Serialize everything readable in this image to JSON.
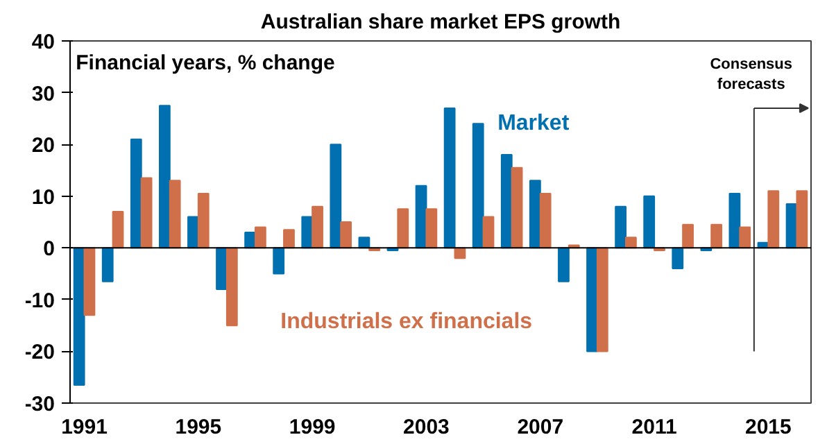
{
  "chart_data": {
    "type": "bar",
    "title": "Australian share market EPS growth",
    "categories": [
      "1991",
      null,
      null,
      null,
      "1995",
      null,
      null,
      null,
      "1999",
      null,
      null,
      null,
      "2003",
      null,
      null,
      null,
      "2007",
      null,
      null,
      null,
      "2011",
      null,
      null,
      null,
      "2015",
      null
    ],
    "series": [
      {
        "name": "Market",
        "color": "#0070b0",
        "values": [
          -26.5,
          -6.5,
          21,
          27.5,
          6,
          -8,
          3,
          -5,
          6,
          20,
          2,
          -0.5,
          12,
          27,
          24,
          18,
          13,
          -6.5,
          -20,
          8,
          10,
          -4,
          -0.5,
          10.5,
          1,
          8.5
        ]
      },
      {
        "name": "Industrials ex financials",
        "color": "#d0704a",
        "values": [
          -13,
          7,
          13.5,
          13,
          10.5,
          -15,
          4,
          3.5,
          8,
          5,
          -0.5,
          7.5,
          7.5,
          -2,
          6,
          15.5,
          10.5,
          0.5,
          -20,
          2,
          -0.5,
          4.5,
          4.5,
          4,
          11,
          11
        ]
      }
    ],
    "ylim": [
      -30,
      40
    ],
    "yticks": [
      -30,
      -20,
      -10,
      0,
      10,
      20,
      30,
      40
    ],
    "annotations": [
      "Financial years, % change",
      "Consensus forecasts"
    ],
    "ref_lines": [
      {
        "axis": "y",
        "value": 0,
        "color": "#000000"
      }
    ],
    "grid": false
  }
}
